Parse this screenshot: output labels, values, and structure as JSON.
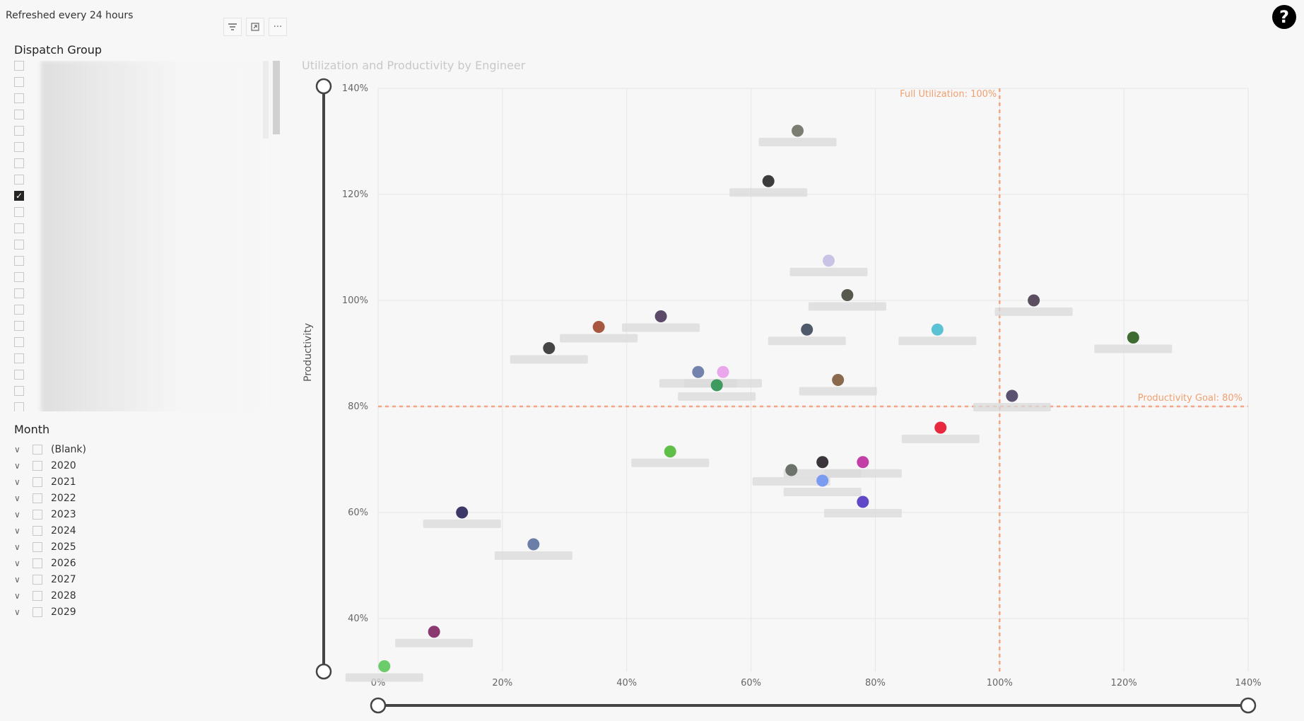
{
  "header": {
    "refresh_note": "Refreshed every 24 hours",
    "help": "?"
  },
  "visual_header": {
    "filter_icon": "filter-icon",
    "focus_icon": "focus-mode-icon",
    "more_label": "···"
  },
  "dispatch_slicer": {
    "title": "Dispatch Group",
    "items": [
      {
        "checked": false
      },
      {
        "checked": false
      },
      {
        "checked": false
      },
      {
        "checked": false
      },
      {
        "checked": false
      },
      {
        "checked": false
      },
      {
        "checked": false
      },
      {
        "checked": false
      },
      {
        "checked": true
      },
      {
        "checked": false
      },
      {
        "checked": false
      },
      {
        "checked": false
      },
      {
        "checked": false
      },
      {
        "checked": false
      },
      {
        "checked": false
      },
      {
        "checked": false
      },
      {
        "checked": false
      },
      {
        "checked": false
      },
      {
        "checked": false
      },
      {
        "checked": false
      },
      {
        "checked": false
      },
      {
        "checked": false
      }
    ]
  },
  "month_slicer": {
    "title": "Month",
    "items": [
      "(Blank)",
      "2020",
      "2021",
      "2022",
      "2023",
      "2024",
      "2025",
      "2026",
      "2027",
      "2028",
      "2029"
    ]
  },
  "chart_data": {
    "type": "scatter",
    "title": "Utilization and Productivity by Engineer",
    "xlabel": "",
    "ylabel": "Productivity",
    "xlim": [
      0,
      140
    ],
    "ylim": [
      30,
      140
    ],
    "x_ticks": [
      "0%",
      "20%",
      "40%",
      "60%",
      "80%",
      "100%",
      "120%",
      "140%"
    ],
    "y_ticks": [
      "40%",
      "60%",
      "80%",
      "100%",
      "120%",
      "140%"
    ],
    "grid": true,
    "reference_lines": [
      {
        "axis": "x",
        "value": 100,
        "label": "Full Utilization: 100%",
        "color": "#f4a582"
      },
      {
        "axis": "y",
        "value": 80,
        "label": "Productivity Goal: 80%",
        "color": "#f4a582"
      }
    ],
    "points": [
      {
        "x": 67.5,
        "y": 132,
        "color": "#7b7d72"
      },
      {
        "x": 62.8,
        "y": 122.5,
        "color": "#3c3c3c"
      },
      {
        "x": 72.5,
        "y": 107.5,
        "color": "#c9c3e6"
      },
      {
        "x": 75.5,
        "y": 101,
        "color": "#555a4c"
      },
      {
        "x": 105.5,
        "y": 100,
        "color": "#5a4e60"
      },
      {
        "x": 45.5,
        "y": 97,
        "color": "#5b4a6a"
      },
      {
        "x": 35.5,
        "y": 95,
        "color": "#a85840"
      },
      {
        "x": 69,
        "y": 94.5,
        "color": "#4e5a6a"
      },
      {
        "x": 90,
        "y": 94.5,
        "color": "#5bc2d3"
      },
      {
        "x": 121.5,
        "y": 93,
        "color": "#3e6b32"
      },
      {
        "x": 27.5,
        "y": 91,
        "color": "#454545"
      },
      {
        "x": 51.5,
        "y": 86.5,
        "color": "#7383ae"
      },
      {
        "x": 55.5,
        "y": 86.5,
        "color": "#e9a6ec"
      },
      {
        "x": 54.5,
        "y": 84,
        "color": "#3e9a5e"
      },
      {
        "x": 74,
        "y": 85,
        "color": "#8a6a4c"
      },
      {
        "x": 102,
        "y": 82,
        "color": "#5a5270"
      },
      {
        "x": 90.5,
        "y": 76,
        "color": "#e8283e"
      },
      {
        "x": 47,
        "y": 71.5,
        "color": "#5fbf48"
      },
      {
        "x": 71.5,
        "y": 69.5,
        "color": "#3a353a"
      },
      {
        "x": 78,
        "y": 69.5,
        "color": "#c23fa8"
      },
      {
        "x": 66.5,
        "y": 68,
        "color": "#6c736c"
      },
      {
        "x": 71.5,
        "y": 66,
        "color": "#7b9bf0"
      },
      {
        "x": 78,
        "y": 62,
        "color": "#6048c6"
      },
      {
        "x": 13.5,
        "y": 60,
        "color": "#3c3868"
      },
      {
        "x": 25,
        "y": 54,
        "color": "#6a7ea8"
      },
      {
        "x": 9,
        "y": 37.5,
        "color": "#8a3a70"
      },
      {
        "x": 1,
        "y": 31,
        "color": "#6ccc6c"
      }
    ]
  }
}
